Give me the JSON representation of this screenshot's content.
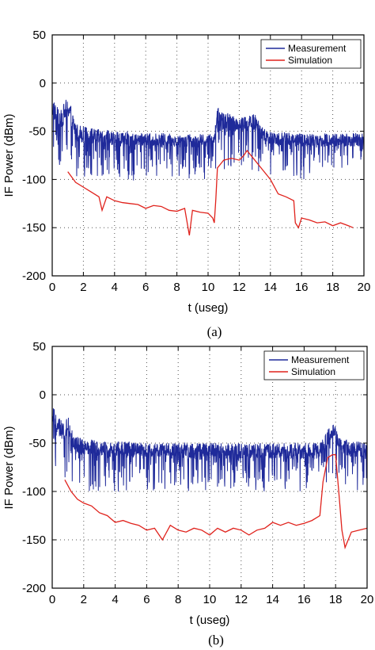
{
  "chart_data": [
    {
      "type": "line",
      "caption": "(a)",
      "xlabel": "t  (useg)",
      "ylabel": "IF Power (dBm)",
      "xlim": [
        0,
        20
      ],
      "ylim": [
        -200,
        50
      ],
      "xticks": [
        0,
        2,
        4,
        6,
        8,
        10,
        12,
        14,
        16,
        18,
        20
      ],
      "yticks": [
        50,
        0,
        -50,
        -100,
        -150,
        -200
      ],
      "grid": true,
      "legend_position": "top-right",
      "series": [
        {
          "name": "Measurement",
          "color": "#1f2a9a",
          "style": "noisy",
          "envelope": {
            "x": [
              0,
              0.5,
              1.0,
              1.5,
              2.0,
              3,
              4,
              6,
              8,
              10,
              10.4,
              10.5,
              10.6,
              11,
              12,
              13,
              13.5,
              14,
              16,
              18,
              20
            ],
            "upper": [
              -15,
              -30,
              -12,
              -40,
              -45,
              -48,
              -50,
              -52,
              -52,
              -53,
              -53,
              -38,
              -25,
              -30,
              -35,
              -32,
              -45,
              -50,
              -52,
              -52,
              -52
            ],
            "base": [
              -35,
              -50,
              -35,
              -60,
              -62,
              -64,
              -65,
              -66,
              -66,
              -67,
              -67,
              -50,
              -45,
              -50,
              -50,
              -50,
              -60,
              -64,
              -66,
              -66,
              -66
            ],
            "lower": [
              -75,
              -90,
              -75,
              -100,
              -100,
              -100,
              -100,
              -102,
              -100,
              -100,
              -100,
              -90,
              -85,
              -90,
              -90,
              -92,
              -100,
              -100,
              -100,
              -98,
              -96
            ]
          }
        },
        {
          "name": "Simulation",
          "color": "#e0221c",
          "style": "line",
          "x": [
            1.0,
            1.5,
            2.0,
            2.5,
            3.0,
            3.2,
            3.5,
            4.0,
            4.5,
            5.0,
            5.5,
            6.0,
            6.5,
            7.0,
            7.5,
            8.0,
            8.5,
            8.8,
            9.0,
            9.5,
            10.0,
            10.3,
            10.4,
            10.5,
            10.6,
            11.0,
            11.5,
            12.0,
            12.3,
            12.5,
            13.0,
            13.5,
            14.0,
            14.5,
            15.0,
            15.5,
            15.6,
            15.8,
            16.0,
            16.5,
            17.0,
            17.5,
            18.0,
            18.5,
            19.0,
            19.3
          ],
          "y": [
            -92,
            -103,
            -108,
            -113,
            -118,
            -132,
            -118,
            -122,
            -124,
            -125,
            -126,
            -130,
            -127,
            -128,
            -132,
            -133,
            -130,
            -158,
            -132,
            -134,
            -135,
            -140,
            -145,
            -120,
            -88,
            -80,
            -78,
            -80,
            -75,
            -70,
            -80,
            -90,
            -100,
            -115,
            -118,
            -122,
            -145,
            -150,
            -140,
            -142,
            -145,
            -144,
            -148,
            -145,
            -148,
            -150
          ]
        }
      ]
    },
    {
      "type": "line",
      "caption": "(b)",
      "xlabel": "t  (useg)",
      "ylabel": "IF Power (dBm)",
      "xlim": [
        0,
        20
      ],
      "ylim": [
        -200,
        50
      ],
      "xticks": [
        0,
        2,
        4,
        6,
        8,
        10,
        12,
        14,
        16,
        18,
        20
      ],
      "yticks": [
        50,
        0,
        -50,
        -100,
        -150,
        -200
      ],
      "grid": true,
      "legend_position": "top-right",
      "series": [
        {
          "name": "Measurement",
          "color": "#1f2a9a",
          "style": "noisy",
          "envelope": {
            "x": [
              0,
              0.3,
              0.8,
              1.0,
              1.3,
              1.6,
              2.0,
              3,
              4,
              6,
              8,
              10,
              12,
              14,
              16,
              17,
              17.5,
              17.8,
              18.0,
              18.3,
              19,
              20
            ],
            "upper": [
              -10,
              -20,
              -32,
              -20,
              -38,
              -42,
              -45,
              -48,
              -48,
              -50,
              -50,
              -50,
              -50,
              -50,
              -50,
              -50,
              -35,
              -30,
              -32,
              -45,
              -48,
              -48
            ],
            "base": [
              -25,
              -40,
              -50,
              -40,
              -55,
              -60,
              -62,
              -64,
              -65,
              -65,
              -66,
              -66,
              -66,
              -66,
              -66,
              -66,
              -55,
              -45,
              -50,
              -60,
              -64,
              -65
            ],
            "lower": [
              -60,
              -80,
              -90,
              -85,
              -95,
              -100,
              -100,
              -100,
              -100,
              -102,
              -100,
              -100,
              -100,
              -100,
              -100,
              -98,
              -90,
              -85,
              -88,
              -98,
              -100,
              -100
            ]
          }
        },
        {
          "name": "Simulation",
          "color": "#e0221c",
          "style": "line",
          "x": [
            0.8,
            1.2,
            1.6,
            2.0,
            2.5,
            3.0,
            3.5,
            4.0,
            4.5,
            5.0,
            5.5,
            6.0,
            6.5,
            7.0,
            7.5,
            8.0,
            8.5,
            9.0,
            9.5,
            10.0,
            10.5,
            11.0,
            11.5,
            12.0,
            12.5,
            13.0,
            13.5,
            14.0,
            14.5,
            15.0,
            15.5,
            16.0,
            16.5,
            17.0,
            17.2,
            17.5,
            17.8,
            18.0,
            18.2,
            18.4,
            18.6,
            19.0,
            19.5,
            20.0
          ],
          "y": [
            -88,
            -100,
            -108,
            -112,
            -115,
            -122,
            -125,
            -132,
            -130,
            -133,
            -135,
            -140,
            -138,
            -150,
            -135,
            -140,
            -142,
            -138,
            -140,
            -145,
            -138,
            -142,
            -138,
            -140,
            -145,
            -140,
            -138,
            -132,
            -135,
            -132,
            -135,
            -133,
            -130,
            -125,
            -90,
            -65,
            -62,
            -62,
            -100,
            -140,
            -158,
            -142,
            -140,
            -138
          ]
        }
      ]
    }
  ]
}
